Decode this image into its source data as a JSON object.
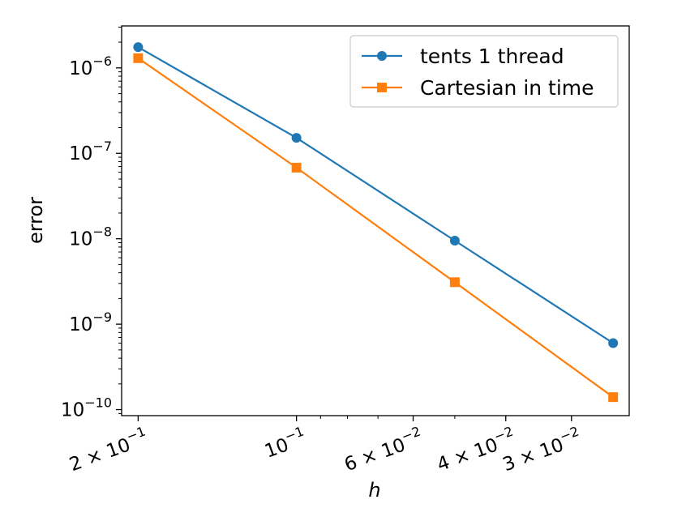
{
  "chart_data": {
    "type": "line",
    "title": "",
    "xlabel": "h",
    "ylabel": "error",
    "xscale": "log",
    "yscale": "log",
    "x_inverted": true,
    "x": [
      0.2,
      0.1,
      0.05,
      0.025
    ],
    "xlim": [
      0.215,
      0.0233
    ],
    "ylim": [
      8.5e-11,
      3.1e-06
    ],
    "series": [
      {
        "name": "tents 1 thread",
        "color": "#1f77b4",
        "marker": "circle",
        "values": [
          1.75e-06,
          1.52e-07,
          9.5e-09,
          6e-10
        ]
      },
      {
        "name": "Cartesian in time",
        "color": "#ff7f0e",
        "marker": "square",
        "values": [
          1.3e-06,
          6.8e-08,
          3.1e-09,
          1.4e-10
        ]
      }
    ],
    "y_ticks": [
      {
        "value": 1e-06,
        "mantissa": "10",
        "exponent": "−6"
      },
      {
        "value": 1e-07,
        "mantissa": "10",
        "exponent": "−7"
      },
      {
        "value": 1e-08,
        "mantissa": "10",
        "exponent": "−8"
      },
      {
        "value": 1e-09,
        "mantissa": "10",
        "exponent": "−9"
      },
      {
        "value": 1e-10,
        "mantissa": "10",
        "exponent": "−10"
      }
    ],
    "x_ticks": [
      {
        "value": 0.2,
        "prefix": "2 × ",
        "mantissa": "10",
        "exponent": "−1"
      },
      {
        "value": 0.1,
        "prefix": "",
        "mantissa": "10",
        "exponent": "−1"
      },
      {
        "value": 0.06,
        "prefix": "6 × ",
        "mantissa": "10",
        "exponent": "−2"
      },
      {
        "value": 0.04,
        "prefix": "4 × ",
        "mantissa": "10",
        "exponent": "−2"
      },
      {
        "value": 0.03,
        "prefix": "3 × ",
        "mantissa": "10",
        "exponent": "−2"
      }
    ],
    "x_minor_ticks": [
      0.09,
      0.08,
      0.07,
      0.05
    ],
    "legend_position": "top-right",
    "grid": false
  }
}
